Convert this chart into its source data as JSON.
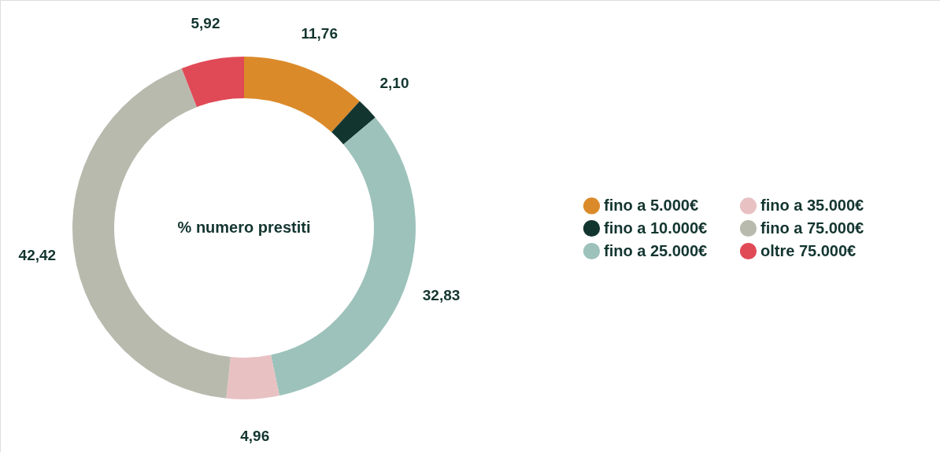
{
  "chart_data": {
    "type": "donut",
    "title": "% numero prestiti",
    "categories": [
      "fino a 5.000€",
      "fino a 10.000€",
      "fino a 25.000€",
      "fino a 35.000€",
      "fino a 75.000€",
      "oltre 75.000€"
    ],
    "values": [
      11.76,
      2.1,
      32.83,
      4.96,
      42.42,
      5.92
    ],
    "value_labels": [
      "11,76",
      "2,10",
      "32,83",
      "4,96",
      "42,42",
      "5,92"
    ],
    "colors": [
      "#db8a2a",
      "#13352f",
      "#9dc2bb",
      "#e8c1c2",
      "#b9baae",
      "#e04a57"
    ],
    "legend": "right"
  }
}
